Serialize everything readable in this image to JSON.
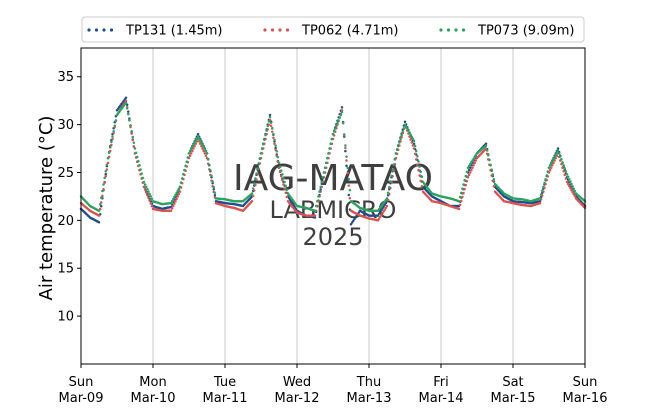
{
  "chart_data": {
    "type": "scatter",
    "ylabel": "Air temperature (°C)",
    "ylim": [
      5,
      38
    ],
    "xlim": [
      "2025-03-09",
      "2025-03-16"
    ],
    "yticks": [
      10,
      15,
      20,
      25,
      30,
      35
    ],
    "xticks": [
      {
        "day": "Sun",
        "date": "Mar-09"
      },
      {
        "day": "Mon",
        "date": "Mar-10"
      },
      {
        "day": "Tue",
        "date": "Mar-11"
      },
      {
        "day": "Wed",
        "date": "Mar-12"
      },
      {
        "day": "Thu",
        "date": "Mar-13"
      },
      {
        "day": "Fri",
        "date": "Mar-14"
      },
      {
        "day": "Sat",
        "date": "Mar-15"
      },
      {
        "day": "Sun",
        "date": "Mar-16"
      }
    ],
    "grid": "vertical",
    "legend_placement": "top",
    "watermark": [
      "IAG-MATAO",
      "LABMICRO",
      "2025"
    ],
    "series": [
      {
        "name": "TP131 (1.45m)",
        "color": "#1f4e8c",
        "points": [
          [
            "2025-03-09T00:00",
            21.2
          ],
          [
            "2025-03-09T03:00",
            20.3
          ],
          [
            "2025-03-09T06:00",
            19.8
          ],
          [
            "2025-03-09T09:00",
            26.5
          ],
          [
            "2025-03-09T12:00",
            31.5
          ],
          [
            "2025-03-09T15:00",
            32.8
          ],
          [
            "2025-03-09T18:00",
            27.0
          ],
          [
            "2025-03-09T21:00",
            23.5
          ],
          [
            "2025-03-10T00:00",
            21.5
          ],
          [
            "2025-03-10T03:00",
            21.2
          ],
          [
            "2025-03-10T06:00",
            21.4
          ],
          [
            "2025-03-10T09:00",
            23.5
          ],
          [
            "2025-03-10T12:00",
            27.0
          ],
          [
            "2025-03-10T15:00",
            29.0
          ],
          [
            "2025-03-10T18:00",
            27.0
          ],
          [
            "2025-03-10T21:00",
            22.0
          ],
          [
            "2025-03-11T00:00",
            21.8
          ],
          [
            "2025-03-11T03:00",
            21.7
          ],
          [
            "2025-03-11T06:00",
            21.5
          ],
          [
            "2025-03-11T09:00",
            22.5
          ],
          [
            "2025-03-11T12:00",
            27.0
          ],
          [
            "2025-03-11T15:00",
            31.0
          ],
          [
            "2025-03-11T18:00",
            25.5
          ],
          [
            "2025-03-11T21:00",
            22.5
          ],
          [
            "2025-03-12T00:00",
            21.0
          ],
          [
            "2025-03-12T03:00",
            20.5
          ],
          [
            "2025-03-12T06:00",
            20.3
          ],
          [
            "2025-03-12T09:00",
            25.0
          ],
          [
            "2025-03-12T12:00",
            29.0
          ],
          [
            "2025-03-12T15:00",
            31.8
          ],
          [
            "2025-03-12T18:00",
            19.6
          ],
          [
            "2025-03-12T21:00",
            21.0
          ],
          [
            "2025-03-13T00:00",
            20.5
          ],
          [
            "2025-03-13T03:00",
            20.5
          ],
          [
            "2025-03-13T06:00",
            22.0
          ],
          [
            "2025-03-13T09:00",
            27.0
          ],
          [
            "2025-03-13T12:00",
            30.3
          ],
          [
            "2025-03-13T15:00",
            28.0
          ],
          [
            "2025-03-13T18:00",
            23.5
          ],
          [
            "2025-03-13T21:00",
            22.5
          ],
          [
            "2025-03-14T00:00",
            22.0
          ],
          [
            "2025-03-14T03:00",
            21.5
          ],
          [
            "2025-03-14T06:00",
            21.5
          ],
          [
            "2025-03-14T09:00",
            25.0
          ],
          [
            "2025-03-14T12:00",
            27.0
          ],
          [
            "2025-03-14T15:00",
            28.0
          ],
          [
            "2025-03-14T18:00",
            23.5
          ],
          [
            "2025-03-14T21:00",
            22.5
          ],
          [
            "2025-03-15T00:00",
            22.0
          ],
          [
            "2025-03-15T03:00",
            21.9
          ],
          [
            "2025-03-15T06:00",
            21.8
          ],
          [
            "2025-03-15T09:00",
            22.0
          ],
          [
            "2025-03-15T12:00",
            25.5
          ],
          [
            "2025-03-15T15:00",
            27.5
          ],
          [
            "2025-03-15T18:00",
            24.5
          ],
          [
            "2025-03-15T21:00",
            22.5
          ],
          [
            "2025-03-16T00:00",
            21.5
          ]
        ]
      },
      {
        "name": "TP062 (4.71m)",
        "color": "#d9534f",
        "points": [
          [
            "2025-03-09T00:00",
            21.8
          ],
          [
            "2025-03-09T03:00",
            21.0
          ],
          [
            "2025-03-09T06:00",
            20.5
          ],
          [
            "2025-03-09T09:00",
            26.0
          ],
          [
            "2025-03-09T12:00",
            31.0
          ],
          [
            "2025-03-09T15:00",
            32.5
          ],
          [
            "2025-03-09T18:00",
            27.0
          ],
          [
            "2025-03-09T21:00",
            23.5
          ],
          [
            "2025-03-10T00:00",
            21.2
          ],
          [
            "2025-03-10T03:00",
            21.0
          ],
          [
            "2025-03-10T06:00",
            21.0
          ],
          [
            "2025-03-10T09:00",
            23.0
          ],
          [
            "2025-03-10T12:00",
            26.5
          ],
          [
            "2025-03-10T15:00",
            28.5
          ],
          [
            "2025-03-10T18:00",
            26.5
          ],
          [
            "2025-03-10T21:00",
            21.8
          ],
          [
            "2025-03-11T00:00",
            21.5
          ],
          [
            "2025-03-11T03:00",
            21.3
          ],
          [
            "2025-03-11T06:00",
            21.0
          ],
          [
            "2025-03-11T09:00",
            22.0
          ],
          [
            "2025-03-11T12:00",
            26.5
          ],
          [
            "2025-03-11T15:00",
            30.5
          ],
          [
            "2025-03-11T18:00",
            25.5
          ],
          [
            "2025-03-11T21:00",
            22.0
          ],
          [
            "2025-03-12T00:00",
            20.8
          ],
          [
            "2025-03-12T03:00",
            20.5
          ],
          [
            "2025-03-12T06:00",
            20.5
          ],
          [
            "2025-03-12T09:00",
            24.5
          ],
          [
            "2025-03-12T12:00",
            28.5
          ],
          [
            "2025-03-12T15:00",
            31.5
          ],
          [
            "2025-03-12T18:00",
            21.0
          ],
          [
            "2025-03-12T21:00",
            20.5
          ],
          [
            "2025-03-13T00:00",
            20.2
          ],
          [
            "2025-03-13T03:00",
            20.0
          ],
          [
            "2025-03-13T06:00",
            21.5
          ],
          [
            "2025-03-13T09:00",
            26.5
          ],
          [
            "2025-03-13T12:00",
            30.0
          ],
          [
            "2025-03-13T15:00",
            27.5
          ],
          [
            "2025-03-13T18:00",
            23.0
          ],
          [
            "2025-03-13T21:00",
            22.0
          ],
          [
            "2025-03-14T00:00",
            21.8
          ],
          [
            "2025-03-14T03:00",
            21.5
          ],
          [
            "2025-03-14T06:00",
            21.2
          ],
          [
            "2025-03-14T09:00",
            24.5
          ],
          [
            "2025-03-14T12:00",
            26.5
          ],
          [
            "2025-03-14T15:00",
            27.5
          ],
          [
            "2025-03-14T18:00",
            23.0
          ],
          [
            "2025-03-14T21:00",
            22.0
          ],
          [
            "2025-03-15T00:00",
            21.8
          ],
          [
            "2025-03-15T03:00",
            21.6
          ],
          [
            "2025-03-15T06:00",
            21.5
          ],
          [
            "2025-03-15T09:00",
            21.8
          ],
          [
            "2025-03-15T12:00",
            25.0
          ],
          [
            "2025-03-15T15:00",
            27.0
          ],
          [
            "2025-03-15T18:00",
            24.0
          ],
          [
            "2025-03-15T21:00",
            22.3
          ],
          [
            "2025-03-16T00:00",
            21.3
          ]
        ]
      },
      {
        "name": "TP073 (9.09m)",
        "color": "#2ca25f",
        "points": [
          [
            "2025-03-09T00:00",
            22.5
          ],
          [
            "2025-03-09T03:00",
            21.5
          ],
          [
            "2025-03-09T06:00",
            21.0
          ],
          [
            "2025-03-09T09:00",
            26.5
          ],
          [
            "2025-03-09T12:00",
            31.0
          ],
          [
            "2025-03-09T15:00",
            32.3
          ],
          [
            "2025-03-09T18:00",
            27.5
          ],
          [
            "2025-03-09T21:00",
            24.0
          ],
          [
            "2025-03-10T00:00",
            22.0
          ],
          [
            "2025-03-10T03:00",
            21.7
          ],
          [
            "2025-03-10T06:00",
            21.8
          ],
          [
            "2025-03-10T09:00",
            23.5
          ],
          [
            "2025-03-10T12:00",
            27.0
          ],
          [
            "2025-03-10T15:00",
            28.8
          ],
          [
            "2025-03-10T18:00",
            27.0
          ],
          [
            "2025-03-10T21:00",
            22.3
          ],
          [
            "2025-03-11T00:00",
            22.2
          ],
          [
            "2025-03-11T03:00",
            22.0
          ],
          [
            "2025-03-11T06:00",
            22.0
          ],
          [
            "2025-03-11T09:00",
            22.8
          ],
          [
            "2025-03-11T12:00",
            27.0
          ],
          [
            "2025-03-11T15:00",
            30.8
          ],
          [
            "2025-03-11T18:00",
            26.0
          ],
          [
            "2025-03-11T21:00",
            22.8
          ],
          [
            "2025-03-12T00:00",
            21.5
          ],
          [
            "2025-03-12T03:00",
            21.3
          ],
          [
            "2025-03-12T06:00",
            21.0
          ],
          [
            "2025-03-12T09:00",
            25.0
          ],
          [
            "2025-03-12T12:00",
            29.0
          ],
          [
            "2025-03-12T15:00",
            31.3
          ],
          [
            "2025-03-12T18:00",
            22.0
          ],
          [
            "2025-03-12T21:00",
            21.3
          ],
          [
            "2025-03-13T00:00",
            21.0
          ],
          [
            "2025-03-13T03:00",
            21.0
          ],
          [
            "2025-03-13T06:00",
            22.3
          ],
          [
            "2025-03-13T09:00",
            27.0
          ],
          [
            "2025-03-13T12:00",
            30.0
          ],
          [
            "2025-03-13T15:00",
            28.3
          ],
          [
            "2025-03-13T18:00",
            24.0
          ],
          [
            "2025-03-13T21:00",
            22.8
          ],
          [
            "2025-03-14T00:00",
            22.5
          ],
          [
            "2025-03-14T03:00",
            22.3
          ],
          [
            "2025-03-14T06:00",
            22.0
          ],
          [
            "2025-03-14T09:00",
            25.5
          ],
          [
            "2025-03-14T12:00",
            27.0
          ],
          [
            "2025-03-14T15:00",
            27.8
          ],
          [
            "2025-03-14T18:00",
            23.8
          ],
          [
            "2025-03-14T21:00",
            22.8
          ],
          [
            "2025-03-15T00:00",
            22.3
          ],
          [
            "2025-03-15T03:00",
            22.2
          ],
          [
            "2025-03-15T06:00",
            22.0
          ],
          [
            "2025-03-15T09:00",
            22.3
          ],
          [
            "2025-03-15T12:00",
            25.5
          ],
          [
            "2025-03-15T15:00",
            27.3
          ],
          [
            "2025-03-15T18:00",
            24.8
          ],
          [
            "2025-03-15T21:00",
            22.8
          ],
          [
            "2025-03-16T00:00",
            22.0
          ]
        ]
      }
    ]
  }
}
